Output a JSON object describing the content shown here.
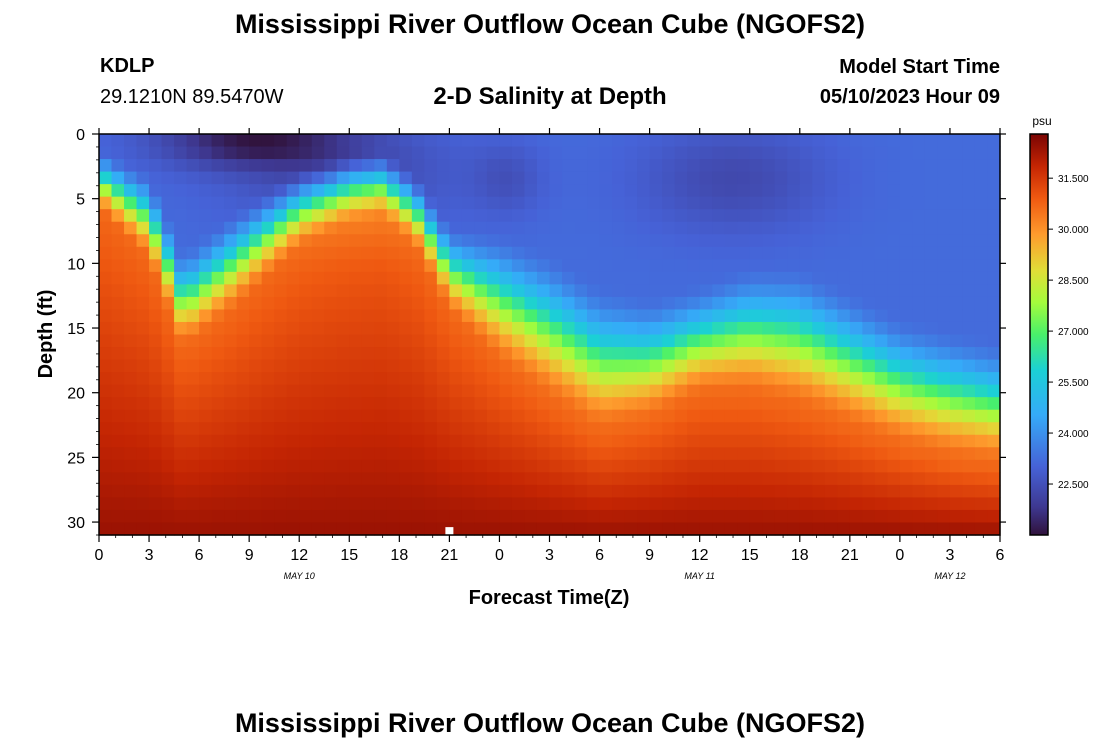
{
  "header": {
    "title": "Mississippi River Outflow Ocean Cube (NGOFS2)",
    "station_id": "KDLP",
    "coordinates": "29.1210N  89.5470W",
    "subtitle": "2-D Salinity at Depth",
    "model_start_label": "Model Start Time",
    "model_start_value": "05/10/2023 Hour 09"
  },
  "footer": {
    "title_repeat": "Mississippi River Outflow Ocean Cube (NGOFS2)"
  },
  "chart_data": {
    "type": "heatmap",
    "xlabel": "Forecast Time(Z)",
    "ylabel": "Depth (ft)",
    "x_range_hours": [
      0,
      54
    ],
    "x_tick_labels": [
      "0",
      "3",
      "6",
      "9",
      "12",
      "15",
      "18",
      "21",
      "0",
      "3",
      "6",
      "9",
      "12",
      "15",
      "18",
      "21",
      "0",
      "3",
      "6"
    ],
    "date_labels": [
      {
        "label": "MAY 10",
        "hour": 12
      },
      {
        "label": "MAY 11",
        "hour": 36
      },
      {
        "label": "MAY 12",
        "hour": 51
      }
    ],
    "y_ticks": [
      0,
      5,
      10,
      15,
      20,
      25,
      30
    ],
    "y_range": [
      0,
      31
    ],
    "y_inverted": true,
    "marker": {
      "hour": 21,
      "depth": 30.7
    },
    "colorbar": {
      "unit": "psu",
      "ticks": [
        "31.500",
        "30.000",
        "28.500",
        "27.000",
        "25.500",
        "24.000",
        "22.500"
      ],
      "range": [
        21.0,
        32.8
      ]
    },
    "values_description": "Salinity (psu) by forecast time (hours) and depth (ft); upper mixed layer ~22.5-24 psu, deep layer ~31-32 psu",
    "profile_top_depth_ft": {
      "hours": [
        0,
        3,
        5,
        8,
        12,
        15,
        17,
        19,
        21,
        24,
        27,
        30,
        33,
        36,
        39,
        42,
        45,
        48,
        51,
        54
      ],
      "values": [
        1,
        3,
        9,
        6,
        2.5,
        1.2,
        1.0,
        3,
        7,
        7.5,
        9,
        11.5,
        12.5,
        11.5,
        10,
        10,
        12,
        14,
        15,
        16
      ]
    },
    "profile_bottom_depth_ft": {
      "hours": [
        0,
        3,
        5,
        8,
        12,
        15,
        17,
        19,
        21,
        24,
        27,
        30,
        33,
        36,
        39,
        42,
        45,
        48,
        51,
        54
      ],
      "values": [
        6,
        10,
        17,
        14,
        9,
        7,
        6.5,
        9,
        14,
        18,
        21,
        23.5,
        22.5,
        20.5,
        20.5,
        21.5,
        23,
        24.5,
        25.5,
        26
      ]
    }
  }
}
